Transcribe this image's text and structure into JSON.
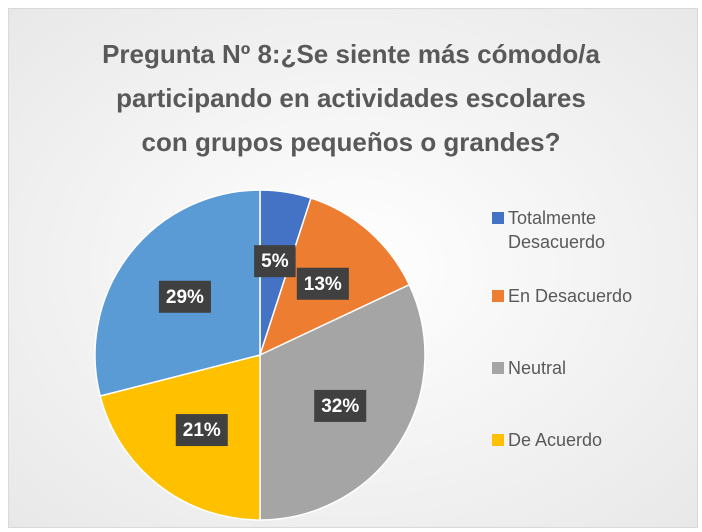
{
  "chart_data": {
    "type": "pie",
    "title": "Pregunta Nº 8:¿Se siente más cómodo/a\nparticipando en actividades escolares\ncon grupos pequeños o grandes?",
    "categories": [
      "Totalmente Desacuerdo",
      "En Desacuerdo",
      "Neutral",
      "De Acuerdo",
      null
    ],
    "values": [
      5,
      13,
      32,
      21,
      29
    ],
    "value_labels": [
      "5%",
      "13%",
      "32%",
      "21%",
      "29%"
    ],
    "colors": [
      "#4472c4",
      "#ed7d31",
      "#a5a5a5",
      "#ffc000",
      "#5b9bd5"
    ],
    "legend": "right"
  }
}
